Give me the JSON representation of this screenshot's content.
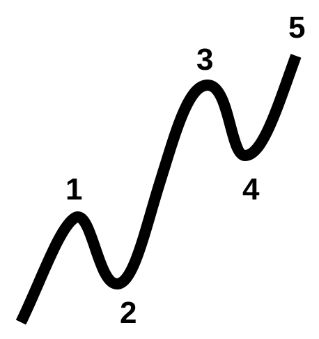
{
  "diagram": {
    "line_color": "#000000",
    "background_color": "#ffffff",
    "labels": [
      {
        "id": "wave-1",
        "text": "1"
      },
      {
        "id": "wave-2",
        "text": "2"
      },
      {
        "id": "wave-3",
        "text": "3"
      },
      {
        "id": "wave-4",
        "text": "4"
      },
      {
        "id": "wave-5",
        "text": "5"
      }
    ]
  }
}
